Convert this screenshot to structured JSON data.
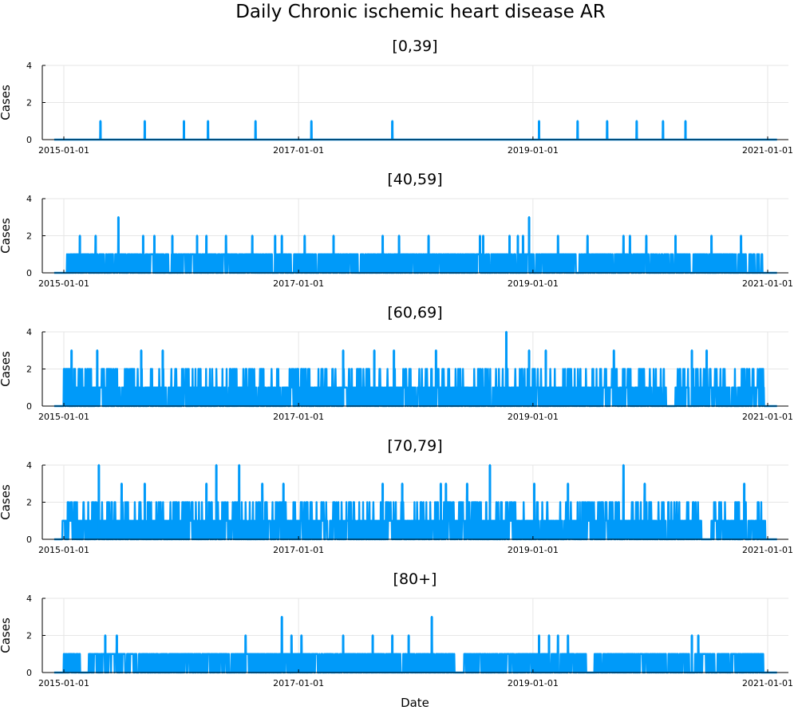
{
  "title": "Daily Chronic ischemic heart disease AR",
  "xlabel": "Date",
  "series_color": "#009af9",
  "chart_data": [
    {
      "type": "line",
      "title": "[0,39]",
      "ylabel": "Cases",
      "ylim": [
        0,
        4
      ],
      "yticks": [
        "0",
        "2",
        "4"
      ],
      "xlim": [
        "2015-01-01",
        "2021-01-01"
      ],
      "xticks": [
        "2015-01-01",
        "2017-01-01",
        "2019-01-01",
        "2021-01-01"
      ],
      "baseline": 0,
      "grid": true,
      "spikes": [
        {
          "date": "2015-04-25",
          "value": 1
        },
        {
          "date": "2015-09-10",
          "value": 1
        },
        {
          "date": "2016-01-10",
          "value": 1
        },
        {
          "date": "2016-03-25",
          "value": 1
        },
        {
          "date": "2016-08-20",
          "value": 1
        },
        {
          "date": "2017-02-10",
          "value": 1
        },
        {
          "date": "2017-10-20",
          "value": 1
        },
        {
          "date": "2019-01-20",
          "value": 1
        },
        {
          "date": "2019-05-20",
          "value": 1
        },
        {
          "date": "2019-08-20",
          "value": 1
        },
        {
          "date": "2019-11-20",
          "value": 1
        },
        {
          "date": "2020-02-10",
          "value": 1
        },
        {
          "date": "2020-04-20",
          "value": 1
        }
      ]
    },
    {
      "type": "line",
      "title": "[40,59]",
      "ylabel": "Cases",
      "ylim": [
        0,
        4
      ],
      "yticks": [
        "0",
        "2",
        "4"
      ],
      "xlim": [
        "2015-01-01",
        "2021-01-01"
      ],
      "xticks": [
        "2015-01-01",
        "2017-01-01",
        "2019-01-01",
        "2021-01-01"
      ],
      "baseline": 0,
      "grid": true,
      "fill_periods": [
        {
          "start": "2015-01-10",
          "end": "2016-10-10",
          "value": 1
        },
        {
          "start": "2016-10-20",
          "end": "2019-05-15",
          "value": 1
        },
        {
          "start": "2019-05-25",
          "end": "2020-03-01",
          "value": 1
        },
        {
          "start": "2020-03-05",
          "end": "2020-05-05",
          "value": 1
        },
        {
          "start": "2020-05-15",
          "end": "2020-10-25",
          "value": 1
        },
        {
          "start": "2020-11-05",
          "end": "2020-12-20",
          "value": 1
        }
      ],
      "spikes": [
        {
          "date": "2015-02-20",
          "value": 2
        },
        {
          "date": "2015-04-10",
          "value": 2
        },
        {
          "date": "2015-06-20",
          "value": 3
        },
        {
          "date": "2015-09-05",
          "value": 2
        },
        {
          "date": "2015-10-10",
          "value": 2
        },
        {
          "date": "2015-12-05",
          "value": 2
        },
        {
          "date": "2016-02-20",
          "value": 2
        },
        {
          "date": "2016-03-20",
          "value": 2
        },
        {
          "date": "2016-05-20",
          "value": 2
        },
        {
          "date": "2016-08-10",
          "value": 2
        },
        {
          "date": "2016-10-20",
          "value": 2
        },
        {
          "date": "2016-11-10",
          "value": 2
        },
        {
          "date": "2017-01-20",
          "value": 2
        },
        {
          "date": "2017-04-20",
          "value": 2
        },
        {
          "date": "2017-09-20",
          "value": 2
        },
        {
          "date": "2017-11-10",
          "value": 2
        },
        {
          "date": "2018-02-10",
          "value": 2
        },
        {
          "date": "2018-07-20",
          "value": 2
        },
        {
          "date": "2018-07-30",
          "value": 2
        },
        {
          "date": "2018-10-20",
          "value": 2
        },
        {
          "date": "2018-11-15",
          "value": 2
        },
        {
          "date": "2018-12-01",
          "value": 2
        },
        {
          "date": "2018-12-20",
          "value": 3
        },
        {
          "date": "2019-03-20",
          "value": 2
        },
        {
          "date": "2019-06-20",
          "value": 2
        },
        {
          "date": "2019-10-10",
          "value": 2
        },
        {
          "date": "2019-10-30",
          "value": 2
        },
        {
          "date": "2019-12-20",
          "value": 2
        },
        {
          "date": "2020-03-20",
          "value": 2
        },
        {
          "date": "2020-07-10",
          "value": 2
        },
        {
          "date": "2020-10-10",
          "value": 2
        }
      ]
    },
    {
      "type": "line",
      "title": "[60,69]",
      "ylabel": "Cases",
      "ylim": [
        0,
        4
      ],
      "yticks": [
        "0",
        "2",
        "4"
      ],
      "xlim": [
        "2015-01-01",
        "2021-01-01"
      ],
      "xticks": [
        "2015-01-01",
        "2017-01-01",
        "2019-01-01",
        "2021-01-01"
      ],
      "baseline": 0,
      "grid": true,
      "fill_periods": [
        {
          "start": "2015-01-01",
          "end": "2015-01-20",
          "value": 2
        },
        {
          "start": "2015-02-01",
          "end": "2020-02-25",
          "value": 1
        },
        {
          "start": "2020-03-20",
          "end": "2020-12-20",
          "value": 1
        }
      ],
      "spikes": [
        {
          "date": "2015-01-25",
          "value": 3
        },
        {
          "date": "2015-04-15",
          "value": 3
        },
        {
          "date": "2015-06-10",
          "value": 2
        },
        {
          "date": "2015-07-20",
          "value": 2
        },
        {
          "date": "2015-08-30",
          "value": 3
        },
        {
          "date": "2015-11-05",
          "value": 3
        },
        {
          "date": "2016-01-20",
          "value": 2
        },
        {
          "date": "2016-06-10",
          "value": 2
        },
        {
          "date": "2016-09-10",
          "value": 2
        },
        {
          "date": "2017-05-20",
          "value": 3
        },
        {
          "date": "2017-08-25",
          "value": 3
        },
        {
          "date": "2017-10-25",
          "value": 3
        },
        {
          "date": "2018-03-05",
          "value": 3
        },
        {
          "date": "2018-10-10",
          "value": 4
        },
        {
          "date": "2018-12-20",
          "value": 3
        },
        {
          "date": "2019-02-10",
          "value": 3
        },
        {
          "date": "2019-09-10",
          "value": 3
        },
        {
          "date": "2020-05-10",
          "value": 3
        },
        {
          "date": "2020-06-25",
          "value": 3
        },
        {
          "date": "2020-10-20",
          "value": 2
        },
        {
          "date": "2020-12-10",
          "value": 2
        }
      ],
      "dense_value": 2
    },
    {
      "type": "line",
      "title": "[70,79]",
      "ylabel": "Cases",
      "ylim": [
        0,
        4
      ],
      "yticks": [
        "0",
        "2",
        "4"
      ],
      "xlim": [
        "2015-01-01",
        "2021-01-01"
      ],
      "xticks": [
        "2015-01-01",
        "2017-01-01",
        "2019-01-01",
        "2021-01-01"
      ],
      "baseline": 0,
      "grid": true,
      "fill_periods": [
        {
          "start": "2014-12-28",
          "end": "2020-06-10",
          "value": 1
        },
        {
          "start": "2020-07-10",
          "end": "2020-12-25",
          "value": 1
        }
      ],
      "spikes": [
        {
          "date": "2015-04-20",
          "value": 4
        },
        {
          "date": "2015-06-30",
          "value": 3
        },
        {
          "date": "2015-09-10",
          "value": 3
        },
        {
          "date": "2016-03-20",
          "value": 3
        },
        {
          "date": "2016-04-20",
          "value": 4
        },
        {
          "date": "2016-06-30",
          "value": 4
        },
        {
          "date": "2016-09-10",
          "value": 3
        },
        {
          "date": "2016-11-15",
          "value": 3
        },
        {
          "date": "2017-09-20",
          "value": 3
        },
        {
          "date": "2017-11-20",
          "value": 3
        },
        {
          "date": "2018-03-20",
          "value": 3
        },
        {
          "date": "2018-04-05",
          "value": 3
        },
        {
          "date": "2018-06-10",
          "value": 3
        },
        {
          "date": "2018-08-20",
          "value": 4
        },
        {
          "date": "2019-01-05",
          "value": 3
        },
        {
          "date": "2019-04-20",
          "value": 3
        },
        {
          "date": "2019-10-10",
          "value": 4
        },
        {
          "date": "2019-12-15",
          "value": 3
        },
        {
          "date": "2020-10-20",
          "value": 3
        }
      ],
      "dense_value": 2
    },
    {
      "type": "line",
      "title": "[80+]",
      "ylabel": "Cases",
      "ylim": [
        0,
        4
      ],
      "yticks": [
        "0",
        "2",
        "4"
      ],
      "xlim": [
        "2015-01-01",
        "2021-01-01"
      ],
      "xticks": [
        "2015-01-01",
        "2017-01-01",
        "2019-01-01",
        "2021-01-01"
      ],
      "baseline": 0,
      "grid": true,
      "fill_periods": [
        {
          "start": "2015-01-01",
          "end": "2015-02-20",
          "value": 1
        },
        {
          "start": "2015-03-20",
          "end": "2018-05-01",
          "value": 1
        },
        {
          "start": "2018-06-01",
          "end": "2019-06-15",
          "value": 1
        },
        {
          "start": "2019-07-10",
          "end": "2020-05-01",
          "value": 1
        },
        {
          "start": "2020-05-20",
          "end": "2020-12-20",
          "value": 1
        }
      ],
      "spikes": [
        {
          "date": "2015-05-10",
          "value": 2
        },
        {
          "date": "2015-06-15",
          "value": 2
        },
        {
          "date": "2016-07-20",
          "value": 2
        },
        {
          "date": "2016-11-10",
          "value": 3
        },
        {
          "date": "2016-12-10",
          "value": 2
        },
        {
          "date": "2017-01-10",
          "value": 2
        },
        {
          "date": "2017-05-20",
          "value": 2
        },
        {
          "date": "2017-08-20",
          "value": 2
        },
        {
          "date": "2017-10-20",
          "value": 2
        },
        {
          "date": "2017-12-10",
          "value": 2
        },
        {
          "date": "2018-02-20",
          "value": 3
        },
        {
          "date": "2019-01-20",
          "value": 2
        },
        {
          "date": "2019-02-20",
          "value": 2
        },
        {
          "date": "2019-03-20",
          "value": 2
        },
        {
          "date": "2019-04-20",
          "value": 2
        },
        {
          "date": "2020-05-10",
          "value": 2
        },
        {
          "date": "2020-05-30",
          "value": 2
        }
      ]
    }
  ]
}
